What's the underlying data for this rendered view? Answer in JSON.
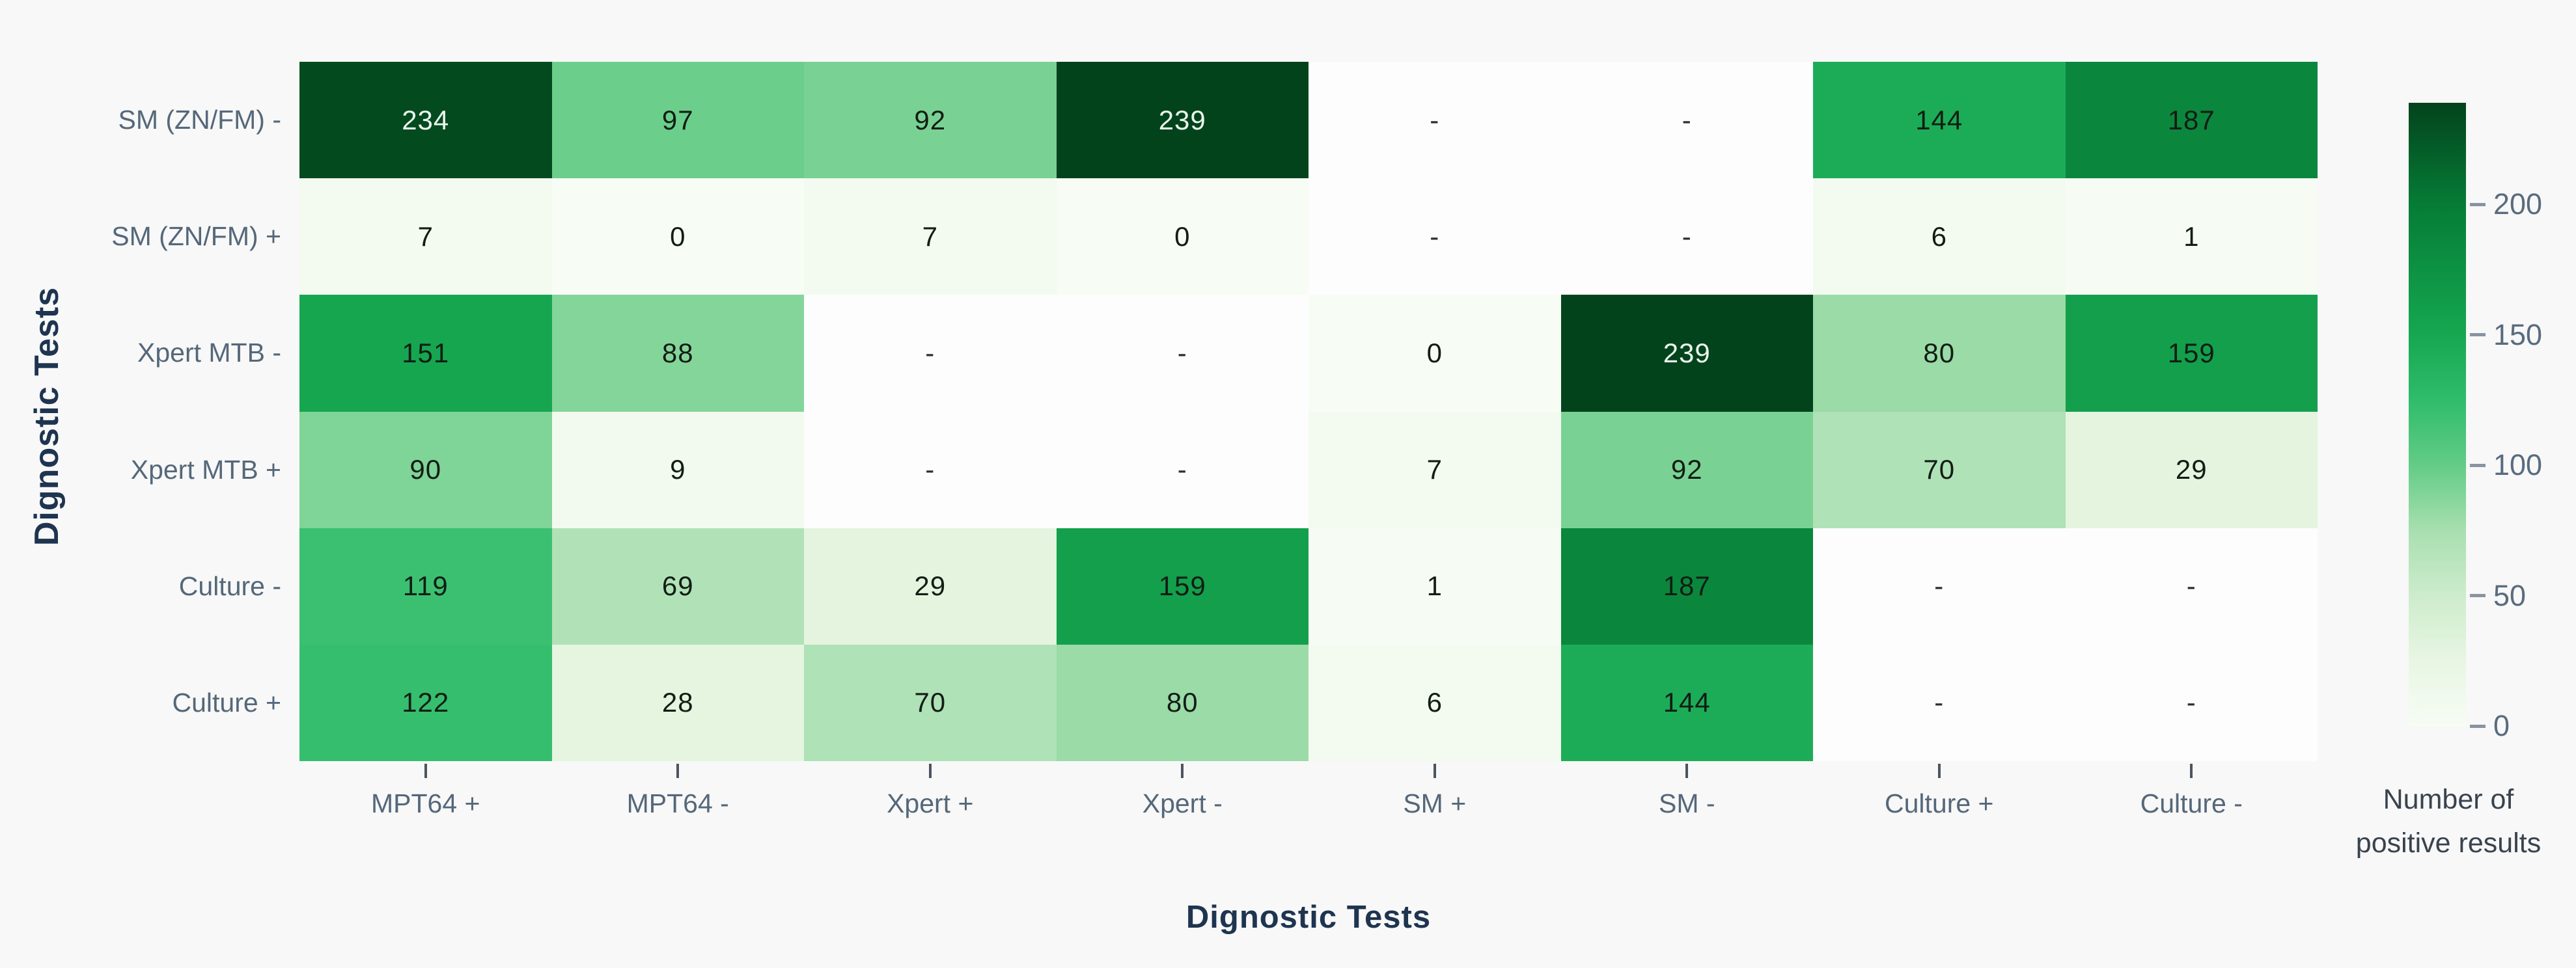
{
  "chart_data": {
    "type": "heatmap",
    "title": "",
    "xlabel": "Dignostic Tests",
    "ylabel": "Dignostic Tests",
    "x_categories": [
      "MPT64 +",
      "MPT64 -",
      "Xpert +",
      "Xpert -",
      "SM +",
      "SM -",
      "Culture +",
      "Culture -"
    ],
    "y_categories": [
      "SM (ZN/FM) -",
      "SM (ZN/FM) +",
      "Xpert MTB -",
      "Xpert MTB +",
      "Culture -",
      "Culture +"
    ],
    "rows": [
      [
        234,
        97,
        92,
        239,
        null,
        null,
        144,
        187
      ],
      [
        7,
        0,
        7,
        0,
        null,
        null,
        6,
        1
      ],
      [
        151,
        88,
        null,
        null,
        0,
        239,
        80,
        159
      ],
      [
        90,
        9,
        null,
        null,
        7,
        92,
        70,
        29
      ],
      [
        119,
        69,
        29,
        159,
        1,
        187,
        null,
        null
      ],
      [
        122,
        28,
        70,
        80,
        6,
        144,
        null,
        null
      ]
    ],
    "missing_marker": "-",
    "vmin": 0,
    "vmax": 239,
    "grid": false,
    "legend_position": "right",
    "colorbar": {
      "ticks": [
        200,
        150,
        100,
        50,
        0
      ],
      "label_lines": [
        "Number of",
        "positive results"
      ]
    },
    "colormap_stops": [
      {
        "v": 0,
        "c": "#f7fcf5"
      },
      {
        "v": 25,
        "c": "#e8f6e3"
      },
      {
        "v": 50,
        "c": "#cdeccc"
      },
      {
        "v": 75,
        "c": "#a8dfb0"
      },
      {
        "v": 100,
        "c": "#63cc86"
      },
      {
        "v": 125,
        "c": "#2fbc6b"
      },
      {
        "v": 150,
        "c": "#16a751"
      },
      {
        "v": 175,
        "c": "#0d9243"
      },
      {
        "v": 200,
        "c": "#067c36"
      },
      {
        "v": 239,
        "c": "#03431c"
      }
    ],
    "missing_cell_color": "#fdfdfd",
    "light_text_min_value": 210
  },
  "colors": {
    "cell_text_dark": "#121d14",
    "cell_text_light": "#e9f5ec",
    "missing_dash_color": "#2a2f2a"
  }
}
